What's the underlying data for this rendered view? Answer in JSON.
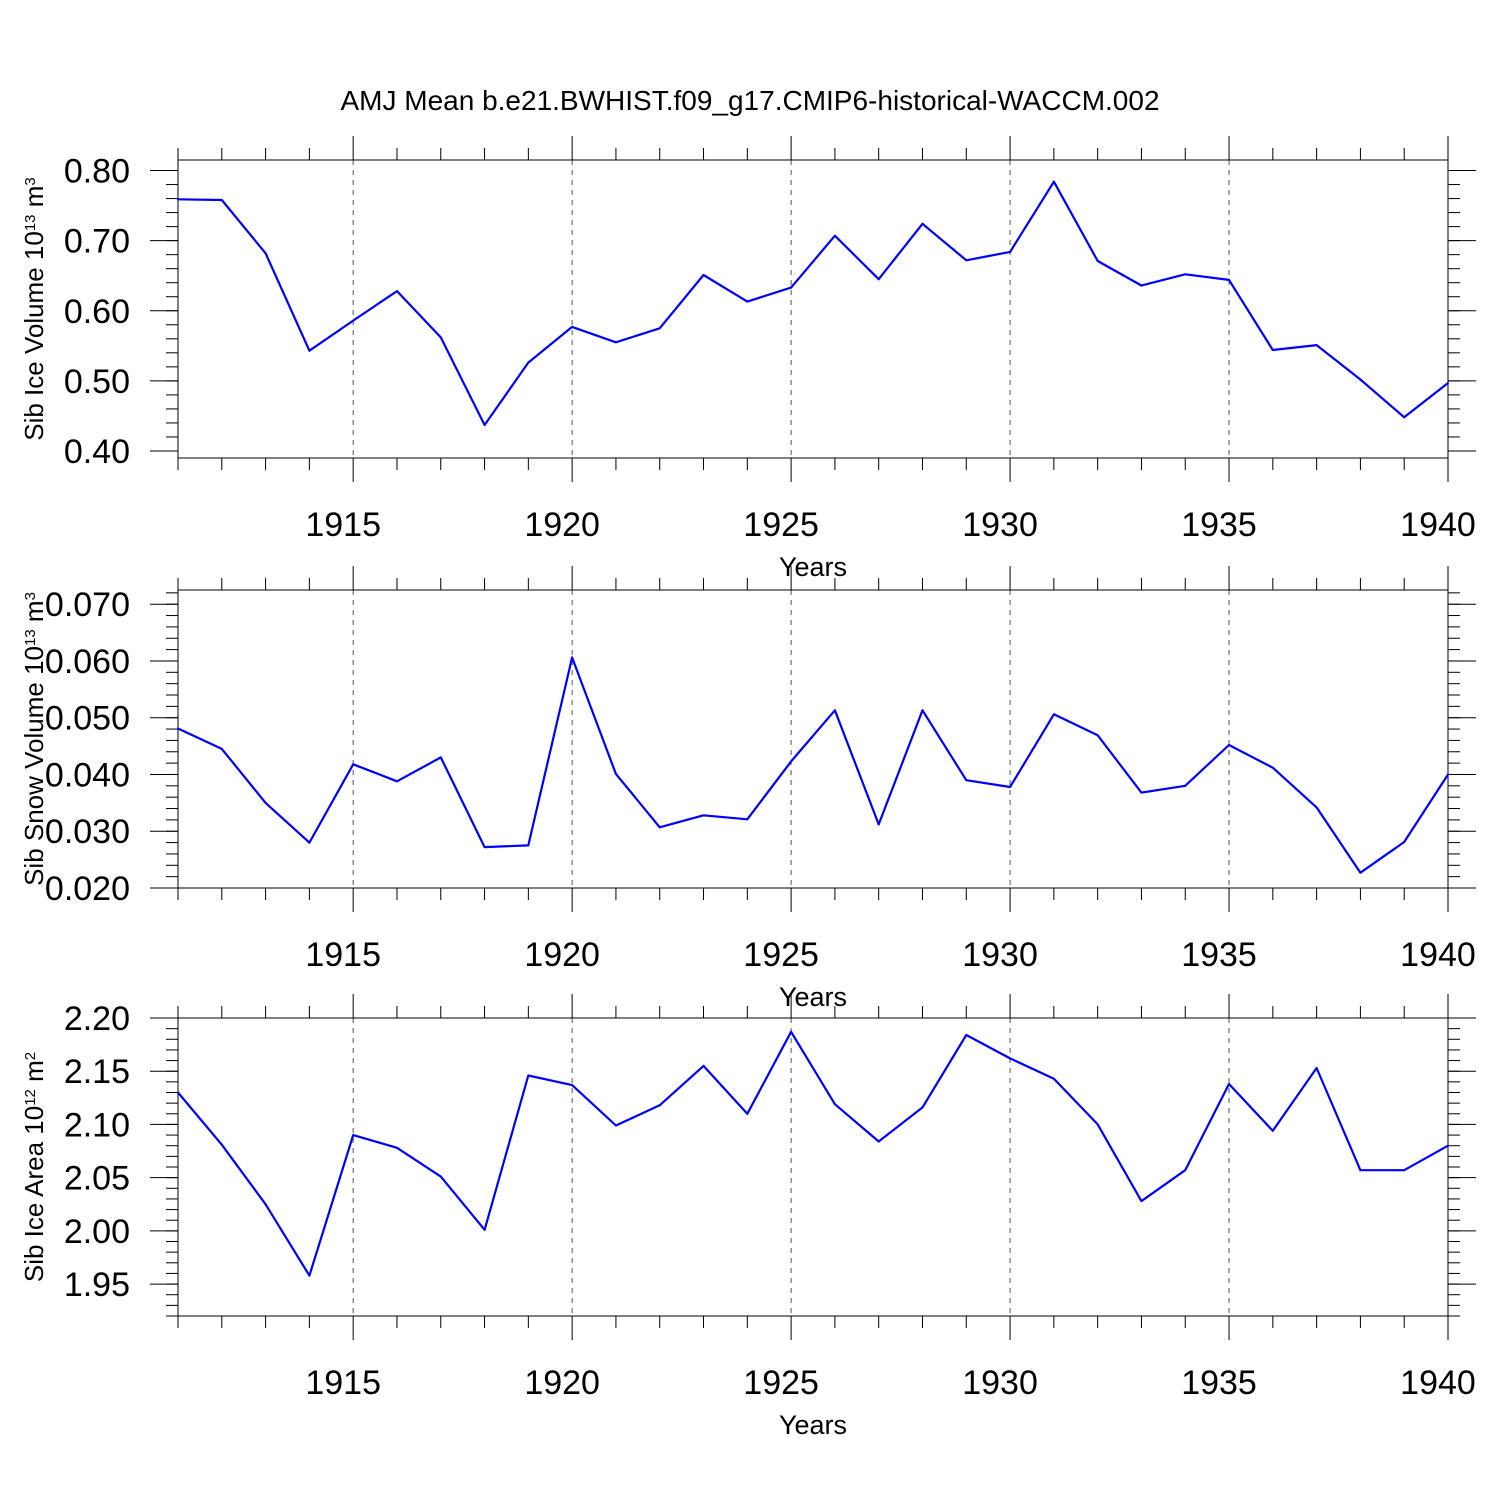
{
  "title": "AMJ Mean b.e21.BWHIST.f09_g17.CMIP6-historical-WACCM.002",
  "colors": {
    "line": "#0000ff",
    "axis": "#000000",
    "grid": "#555555"
  },
  "chart_data": [
    {
      "type": "line",
      "ylabel": {
        "text": "Sib Ice Volume 10",
        "exp": "13",
        "unit": " m",
        "unit_exp": "3"
      },
      "xlabel": "Years",
      "xlim": [
        1911,
        1940
      ],
      "ylim": [
        0.39,
        0.815
      ],
      "x_ticks": [
        1915,
        1920,
        1925,
        1930,
        1935,
        1940
      ],
      "x_tick_labels": [
        "1915",
        "1920",
        "1925",
        "1930",
        "1935",
        "1940"
      ],
      "y_ticks": [
        0.4,
        0.5,
        0.6,
        0.7,
        0.8
      ],
      "y_tick_labels": [
        "0.40",
        "0.50",
        "0.60",
        "0.70",
        "0.80"
      ],
      "y_minor_step": 0.02,
      "grid": "vertical dashed at major x ticks",
      "x": [
        1911,
        1912,
        1913,
        1914,
        1915,
        1916,
        1917,
        1918,
        1919,
        1920,
        1921,
        1922,
        1923,
        1924,
        1925,
        1926,
        1927,
        1928,
        1929,
        1930,
        1931,
        1932,
        1933,
        1934,
        1935,
        1936,
        1937,
        1938,
        1939,
        1940
      ],
      "values": [
        0.759,
        0.758,
        0.682,
        0.543,
        0.586,
        0.628,
        0.562,
        0.437,
        0.526,
        0.577,
        0.555,
        0.575,
        0.651,
        0.613,
        0.633,
        0.707,
        0.645,
        0.724,
        0.672,
        0.684,
        0.784,
        0.671,
        0.636,
        0.652,
        0.644,
        0.544,
        0.551,
        0.502,
        0.448,
        0.497
      ]
    },
    {
      "type": "line",
      "ylabel": {
        "text": "Sib Snow Volume 10",
        "exp": "13",
        "unit": " m",
        "unit_exp": "3"
      },
      "xlabel": "Years",
      "xlim": [
        1911,
        1940
      ],
      "ylim": [
        0.02,
        0.0725
      ],
      "x_ticks": [
        1915,
        1920,
        1925,
        1930,
        1935,
        1940
      ],
      "x_tick_labels": [
        "1915",
        "1920",
        "1925",
        "1930",
        "1935",
        "1940"
      ],
      "y_ticks": [
        0.02,
        0.03,
        0.04,
        0.05,
        0.06,
        0.07
      ],
      "y_tick_labels": [
        "0.020",
        "0.030",
        "0.040",
        "0.050",
        "0.060",
        "0.070"
      ],
      "y_minor_step": 0.002,
      "grid": "vertical dashed at major x ticks",
      "x": [
        1911,
        1912,
        1913,
        1914,
        1915,
        1916,
        1917,
        1918,
        1919,
        1920,
        1921,
        1922,
        1923,
        1924,
        1925,
        1926,
        1927,
        1928,
        1929,
        1930,
        1931,
        1932,
        1933,
        1934,
        1935,
        1936,
        1937,
        1938,
        1939,
        1940
      ],
      "values": [
        0.0481,
        0.0445,
        0.035,
        0.028,
        0.0418,
        0.0388,
        0.043,
        0.0272,
        0.0275,
        0.0606,
        0.0401,
        0.0307,
        0.0328,
        0.0321,
        0.0423,
        0.0513,
        0.0312,
        0.0513,
        0.039,
        0.0378,
        0.0506,
        0.0469,
        0.0368,
        0.038,
        0.0452,
        0.0412,
        0.0342,
        0.0227,
        0.0281,
        0.04
      ]
    },
    {
      "type": "line",
      "ylabel": {
        "text": "Sib Ice Area 10",
        "exp": "12",
        "unit": " m",
        "unit_exp": "2"
      },
      "xlabel": "Years",
      "xlim": [
        1911,
        1940
      ],
      "ylim": [
        1.92,
        2.2
      ],
      "x_ticks": [
        1915,
        1920,
        1925,
        1930,
        1935,
        1940
      ],
      "x_tick_labels": [
        "1915",
        "1920",
        "1925",
        "1930",
        "1935",
        "1940"
      ],
      "y_ticks": [
        1.95,
        2.0,
        2.05,
        2.1,
        2.15,
        2.2
      ],
      "y_tick_labels": [
        "1.95",
        "2.00",
        "2.05",
        "2.10",
        "2.15",
        "2.20"
      ],
      "y_minor_step": 0.01,
      "grid": "vertical dashed at major x ticks",
      "x": [
        1911,
        1912,
        1913,
        1914,
        1915,
        1916,
        1917,
        1918,
        1919,
        1920,
        1921,
        1922,
        1923,
        1924,
        1925,
        1926,
        1927,
        1928,
        1929,
        1930,
        1931,
        1932,
        1933,
        1934,
        1935,
        1936,
        1937,
        1938,
        1939,
        1940
      ],
      "values": [
        2.13,
        2.081,
        2.025,
        1.958,
        2.09,
        2.078,
        2.051,
        2.001,
        2.146,
        2.137,
        2.099,
        2.118,
        2.155,
        2.11,
        2.187,
        2.119,
        2.084,
        2.116,
        2.184,
        2.162,
        2.143,
        2.1,
        2.028,
        2.057,
        2.138,
        2.094,
        2.153,
        2.057,
        2.057,
        2.08
      ]
    }
  ]
}
